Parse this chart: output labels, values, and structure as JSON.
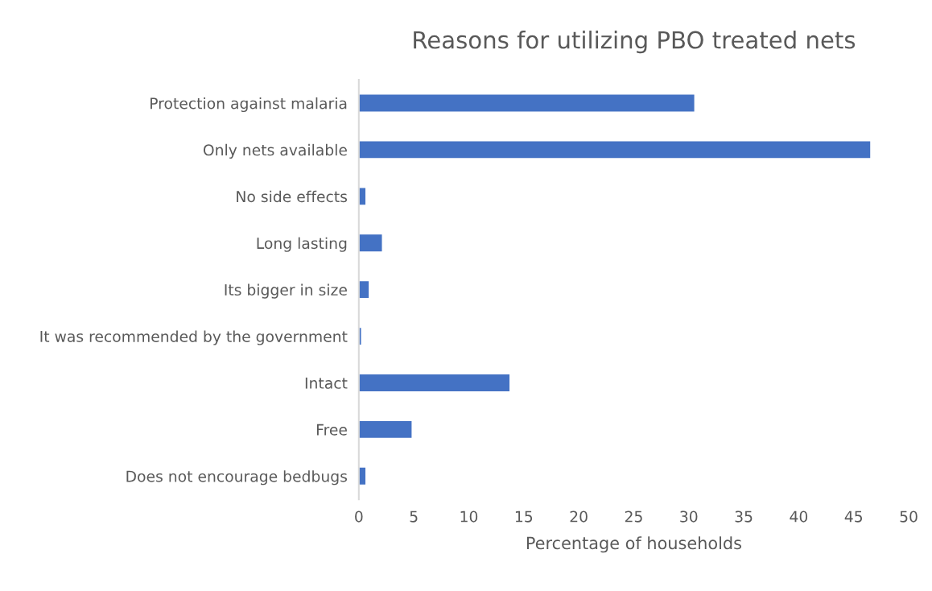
{
  "chart_data": {
    "type": "bar",
    "orientation": "horizontal",
    "title": "Reasons for utilizing PBO treated nets",
    "xlabel": "Percentage of households",
    "categories": [
      "Protection against malaria",
      "Only nets available",
      "No side effects",
      "Long lasting",
      "Its bigger in size",
      "It was recommended by the government",
      "Intact",
      "Free",
      "Does not encourage bedbugs"
    ],
    "values": [
      30.5,
      46.5,
      0.6,
      2.1,
      0.9,
      0.2,
      13.7,
      4.8,
      0.6
    ],
    "color": "#4472c4",
    "xlim": [
      0,
      50
    ],
    "xticks": [
      0,
      5,
      10,
      15,
      20,
      25,
      30,
      35,
      40,
      45,
      50
    ],
    "grid": false,
    "legend": false
  }
}
